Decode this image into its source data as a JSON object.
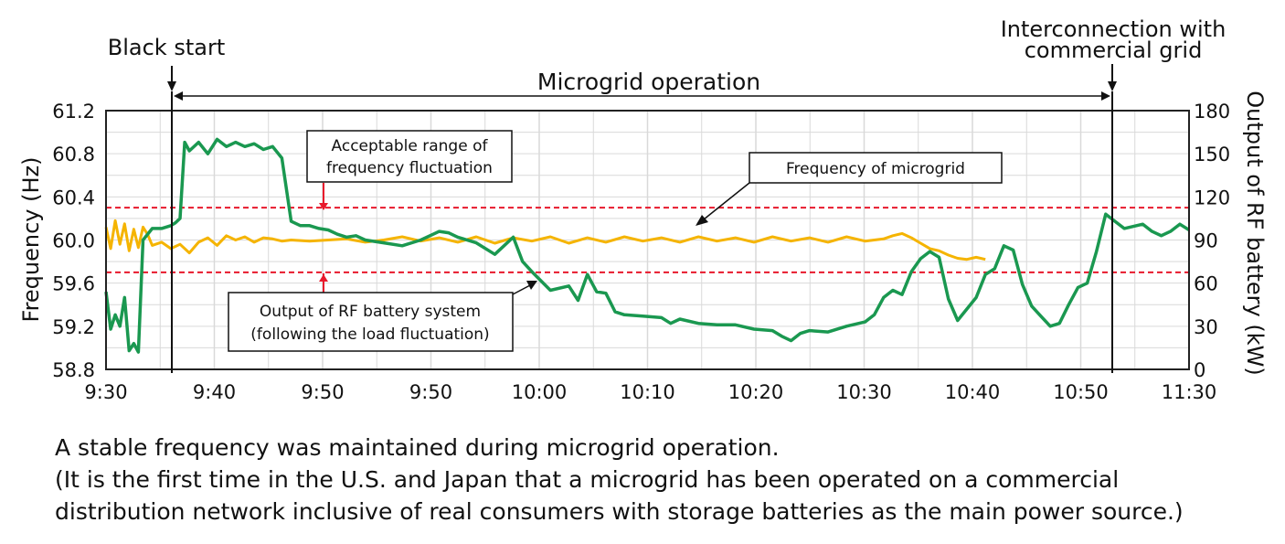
{
  "chart_data": {
    "type": "line",
    "title": "Microgrid operation",
    "ylabel": "Frequency (Hz)",
    "y2label": "Output of RF battery (kW)",
    "ylim": [
      58.8,
      61.2
    ],
    "y2lim": [
      0,
      180
    ],
    "yticks": [
      "61.2",
      "60.8",
      "60.4",
      "60.0",
      "59.6",
      "59.2",
      "58.8"
    ],
    "y2ticks": [
      "180",
      "150",
      "120",
      "90",
      "60",
      "30",
      "0"
    ],
    "xticks": [
      "9:30",
      "9:40",
      "9:50",
      "9:50",
      "10:00",
      "10:10",
      "10:20",
      "10:30",
      "10:40",
      "10:50",
      "11:30"
    ],
    "grid": true,
    "acceptable_range": [
      59.7,
      60.3
    ],
    "series": [
      {
        "name": "Frequency of microgrid",
        "axis": "left",
        "color": "#f5b400",
        "points": [
          [
            0,
            60.12
          ],
          [
            0.5,
            59.92
          ],
          [
            1,
            60.18
          ],
          [
            1.5,
            59.96
          ],
          [
            2,
            60.15
          ],
          [
            2.5,
            59.9
          ],
          [
            3,
            60.1
          ],
          [
            3.5,
            59.93
          ],
          [
            4,
            60.12
          ],
          [
            4.5,
            60.05
          ],
          [
            5,
            59.95
          ],
          [
            6,
            59.98
          ],
          [
            7,
            59.92
          ],
          [
            8,
            59.96
          ],
          [
            9,
            59.88
          ],
          [
            10,
            59.98
          ],
          [
            11,
            60.02
          ],
          [
            12,
            59.95
          ],
          [
            13,
            60.04
          ],
          [
            14,
            60.0
          ],
          [
            15,
            60.03
          ],
          [
            16,
            59.98
          ],
          [
            17,
            60.02
          ],
          [
            18,
            60.01
          ],
          [
            19,
            59.99
          ],
          [
            20,
            60.0
          ],
          [
            22,
            59.99
          ],
          [
            24,
            60.0
          ],
          [
            26,
            60.01
          ],
          [
            28,
            59.98
          ],
          [
            30,
            60.0
          ],
          [
            32,
            60.03
          ],
          [
            34,
            59.99
          ],
          [
            36,
            60.02
          ],
          [
            38,
            59.98
          ],
          [
            40,
            60.03
          ],
          [
            42,
            59.97
          ],
          [
            44,
            60.02
          ],
          [
            46,
            59.99
          ],
          [
            48,
            60.03
          ],
          [
            50,
            59.97
          ],
          [
            52,
            60.02
          ],
          [
            54,
            59.98
          ],
          [
            56,
            60.03
          ],
          [
            58,
            59.99
          ],
          [
            60,
            60.02
          ],
          [
            62,
            59.98
          ],
          [
            64,
            60.03
          ],
          [
            66,
            59.99
          ],
          [
            68,
            60.02
          ],
          [
            70,
            59.98
          ],
          [
            72,
            60.03
          ],
          [
            74,
            59.99
          ],
          [
            76,
            60.02
          ],
          [
            78,
            59.98
          ],
          [
            80,
            60.03
          ],
          [
            82,
            59.99
          ],
          [
            84,
            60.01
          ],
          [
            85,
            60.04
          ],
          [
            86,
            60.06
          ],
          [
            87,
            60.02
          ],
          [
            88,
            59.97
          ],
          [
            89,
            59.92
          ],
          [
            90,
            59.9
          ],
          [
            91,
            59.86
          ],
          [
            92,
            59.83
          ],
          [
            93,
            59.82
          ],
          [
            94,
            59.84
          ],
          [
            95,
            59.82
          ]
        ]
      },
      {
        "name": "Output of RF battery system (following the load fluctuation)",
        "axis": "right",
        "color": "#1a9850",
        "points": [
          [
            0,
            54
          ],
          [
            0.5,
            28
          ],
          [
            1,
            38
          ],
          [
            1.5,
            30
          ],
          [
            2,
            50
          ],
          [
            2.5,
            13
          ],
          [
            3,
            18
          ],
          [
            3.5,
            12
          ],
          [
            4,
            90
          ],
          [
            5,
            98
          ],
          [
            6,
            98
          ],
          [
            7,
            100
          ],
          [
            7.5,
            102
          ],
          [
            8,
            105
          ],
          [
            8.5,
            158
          ],
          [
            9,
            152
          ],
          [
            10,
            158
          ],
          [
            11,
            150
          ],
          [
            12,
            160
          ],
          [
            13,
            155
          ],
          [
            14,
            158
          ],
          [
            15,
            155
          ],
          [
            16,
            157
          ],
          [
            17,
            153
          ],
          [
            18,
            155
          ],
          [
            19,
            147
          ],
          [
            20,
            103
          ],
          [
            21,
            100
          ],
          [
            22,
            100
          ],
          [
            23,
            98
          ],
          [
            24,
            97
          ],
          [
            25,
            94
          ],
          [
            26,
            92
          ],
          [
            27,
            93
          ],
          [
            28,
            90
          ],
          [
            30,
            88
          ],
          [
            32,
            86
          ],
          [
            34,
            90
          ],
          [
            36,
            96
          ],
          [
            37,
            95
          ],
          [
            38,
            92
          ],
          [
            40,
            88
          ],
          [
            42,
            80
          ],
          [
            43,
            86
          ],
          [
            44,
            92
          ],
          [
            45,
            75
          ],
          [
            46,
            68
          ],
          [
            48,
            55
          ],
          [
            50,
            58
          ],
          [
            51,
            48
          ],
          [
            52,
            66
          ],
          [
            53,
            54
          ],
          [
            54,
            53
          ],
          [
            55,
            40
          ],
          [
            56,
            38
          ],
          [
            58,
            37
          ],
          [
            60,
            36
          ],
          [
            61,
            32
          ],
          [
            62,
            35
          ],
          [
            64,
            32
          ],
          [
            66,
            31
          ],
          [
            68,
            31
          ],
          [
            70,
            28
          ],
          [
            72,
            27
          ],
          [
            73,
            23
          ],
          [
            74,
            20
          ],
          [
            75,
            25
          ],
          [
            76,
            27
          ],
          [
            78,
            26
          ],
          [
            80,
            30
          ],
          [
            82,
            33
          ],
          [
            83,
            38
          ],
          [
            84,
            50
          ],
          [
            85,
            55
          ],
          [
            86,
            52
          ],
          [
            87,
            68
          ],
          [
            88,
            77
          ],
          [
            89,
            82
          ],
          [
            90,
            78
          ],
          [
            91,
            49
          ],
          [
            92,
            34
          ],
          [
            93,
            42
          ],
          [
            94,
            50
          ],
          [
            95,
            66
          ],
          [
            96,
            70
          ],
          [
            97,
            86
          ],
          [
            98,
            83
          ],
          [
            99,
            59
          ],
          [
            100,
            44
          ],
          [
            101,
            37
          ],
          [
            102,
            30
          ],
          [
            103,
            32
          ],
          [
            104,
            45
          ],
          [
            105,
            57
          ],
          [
            106,
            60
          ],
          [
            107,
            82
          ],
          [
            108,
            108
          ],
          [
            109,
            103
          ],
          [
            110,
            98
          ],
          [
            112,
            101
          ],
          [
            113,
            96
          ],
          [
            114,
            93
          ],
          [
            115,
            96
          ],
          [
            116,
            101
          ],
          [
            117,
            97
          ]
        ]
      }
    ],
    "annotations": {
      "black_start": "Black start",
      "interconnection_line1": "Interconnection with",
      "interconnection_line2": "commercial grid",
      "range_box_line1": "Acceptable range of",
      "range_box_line2": "frequency fluctuation",
      "freq_box": "Frequency of microgrid",
      "battery_box_line1": "Output of RF battery system",
      "battery_box_line2": "(following the load fluctuation)"
    }
  },
  "caption": {
    "line1": "A stable frequency was maintained during microgrid operation.",
    "line2": "(It is the first time in the U.S. and Japan that a microgrid has been operated on a commercial",
    "line3": "distribution network inclusive of real consumers with storage batteries as the main power source.)"
  },
  "colors": {
    "range_lines": "#e8192c",
    "gridlines": "#d9d9d9"
  }
}
